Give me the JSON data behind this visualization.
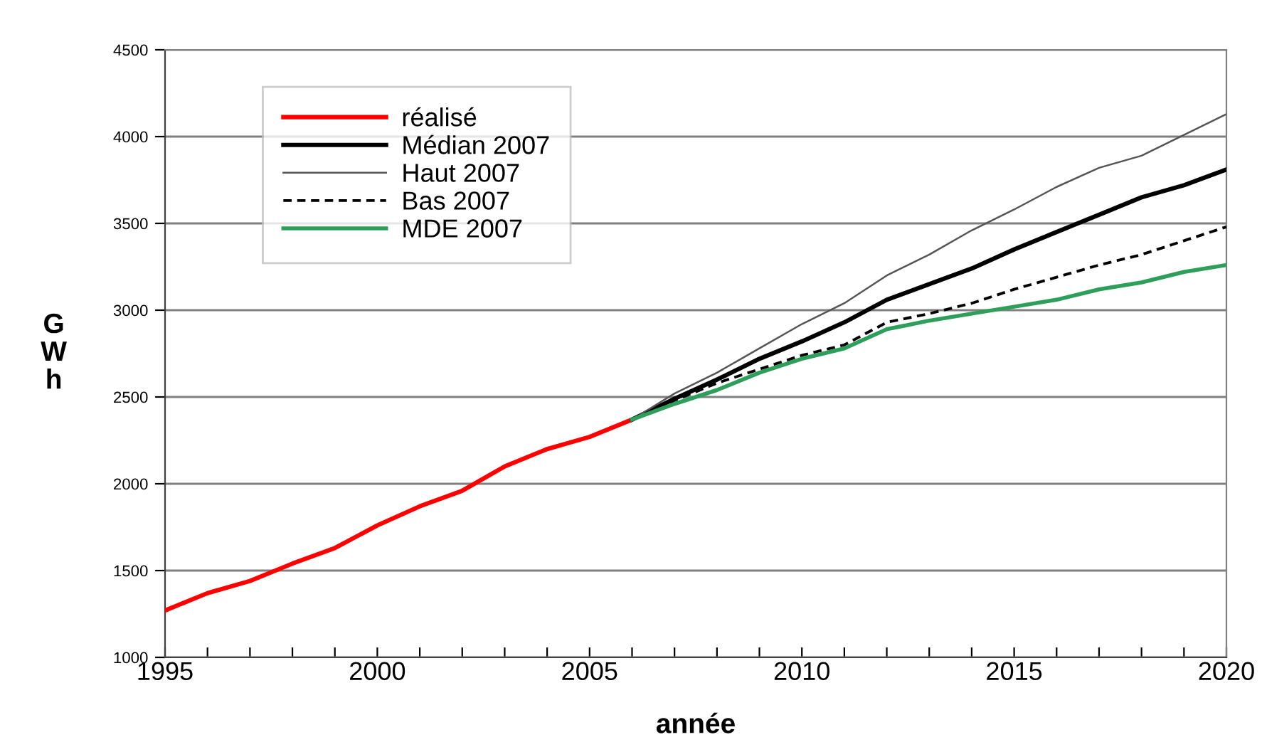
{
  "chart_data": {
    "type": "line",
    "xlabel": "année",
    "ylabel": "GWh",
    "xlim": [
      1995,
      2020
    ],
    "ylim": [
      1000,
      4500
    ],
    "xticks": [
      1995,
      {
        "value": 1996,
        "label": null
      },
      {
        "value": 1997,
        "label": null
      },
      {
        "value": 1998,
        "label": null
      },
      {
        "value": 1999,
        "label": null
      },
      2000,
      {
        "value": 2001,
        "label": null
      },
      {
        "value": 2002,
        "label": null
      },
      {
        "value": 2003,
        "label": null
      },
      {
        "value": 2004,
        "label": null
      },
      2005,
      {
        "value": 2006,
        "label": null
      },
      {
        "value": 2007,
        "label": null
      },
      {
        "value": 2008,
        "label": null
      },
      {
        "value": 2009,
        "label": null
      },
      2010,
      {
        "value": 2011,
        "label": null
      },
      {
        "value": 2012,
        "label": null
      },
      {
        "value": 2013,
        "label": null
      },
      {
        "value": 2014,
        "label": null
      },
      2015,
      {
        "value": 2016,
        "label": null
      },
      {
        "value": 2017,
        "label": null
      },
      {
        "value": 2018,
        "label": null
      },
      {
        "value": 2019,
        "label": null
      },
      2020
    ],
    "yticks": [
      1000,
      1500,
      2000,
      2500,
      3000,
      3500,
      4000,
      4500
    ],
    "grid": "y",
    "legend": "top left",
    "marker": "none",
    "series": [
      {
        "name": "réalisé",
        "color": "#ff0000",
        "x": [
          1995,
          1996,
          1997,
          1998,
          1999,
          2000,
          2001,
          2002,
          2003,
          2004,
          2005,
          2006
        ],
        "values": [
          1270,
          1370,
          1440,
          1540,
          1630,
          1760,
          1870,
          1960,
          2100,
          2200,
          2270,
          2370
        ]
      },
      {
        "name": "Médian 2007",
        "color": "#000000",
        "x": [
          2006,
          2007,
          2008,
          2009,
          2010,
          2011,
          2012,
          2013,
          2014,
          2015,
          2016,
          2017,
          2018,
          2019,
          2020
        ],
        "values": [
          2370,
          2490,
          2600,
          2720,
          2820,
          2930,
          3060,
          3150,
          3240,
          3350,
          3450,
          3550,
          3650,
          3720,
          3810
        ]
      },
      {
        "name": "Haut 2007",
        "color": "#555555",
        "x": [
          2006,
          2007,
          2008,
          2009,
          2010,
          2011,
          2012,
          2013,
          2014,
          2015,
          2016,
          2017,
          2018,
          2019,
          2020
        ],
        "values": [
          2370,
          2520,
          2640,
          2780,
          2920,
          3040,
          3200,
          3320,
          3460,
          3580,
          3710,
          3820,
          3890,
          4010,
          4130
        ]
      },
      {
        "name": "Bas 2007",
        "color": "#000000",
        "line_style": "dashed",
        "x": [
          2006,
          2007,
          2008,
          2009,
          2010,
          2011,
          2012,
          2013,
          2014,
          2015,
          2016,
          2017,
          2018,
          2019,
          2020
        ],
        "values": [
          2370,
          2480,
          2580,
          2660,
          2740,
          2800,
          2930,
          2980,
          3040,
          3120,
          3190,
          3260,
          3320,
          3400,
          3480
        ]
      },
      {
        "name": "MDE 2007",
        "color": "#2e9e5b",
        "x": [
          2006,
          2007,
          2008,
          2009,
          2010,
          2011,
          2012,
          2013,
          2014,
          2015,
          2016,
          2017,
          2018,
          2019,
          2020
        ],
        "values": [
          2370,
          2460,
          2540,
          2640,
          2720,
          2780,
          2890,
          2940,
          2980,
          3020,
          3060,
          3120,
          3160,
          3220,
          3260
        ]
      }
    ]
  }
}
